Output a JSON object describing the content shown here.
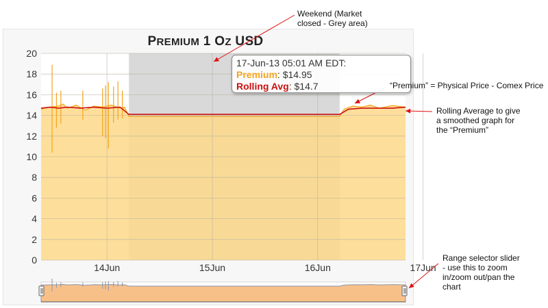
{
  "chart_data": {
    "type": "line",
    "title": "Premium 1 Oz USD",
    "ylim": [
      0,
      20
    ],
    "yticks": [
      0,
      2,
      4,
      6,
      8,
      10,
      12,
      14,
      16,
      18,
      20
    ],
    "x_axis": {
      "start": "2013-06-13 21:00",
      "end": "2013-06-17 08:00",
      "tick_labels": [
        "14Jun",
        "15Jun",
        "16Jun",
        "17Jun"
      ],
      "tick_times": [
        "2013-06-14 12:00",
        "2013-06-15 12:00",
        "2013-06-16 12:00",
        "2013-06-17 12:00"
      ]
    },
    "weekend_band": {
      "start": "2013-06-14 17:00",
      "end": "2013-06-16 17:00"
    },
    "grid": true,
    "series": [
      {
        "name": "Premium",
        "color": "#f5a31a",
        "style": "area",
        "points": [
          [
            "2013-06-13 21:00",
            14.6
          ],
          [
            "2013-06-13 23:00",
            14.8
          ],
          [
            "2013-06-14 01:00",
            14.9
          ],
          [
            "2013-06-14 02:00",
            15.1
          ],
          [
            "2013-06-14 03:00",
            14.7
          ],
          [
            "2013-06-14 05:00",
            15.0
          ],
          [
            "2013-06-14 07:00",
            14.5
          ],
          [
            "2013-06-14 09:00",
            14.9
          ],
          [
            "2013-06-14 11:00",
            14.8
          ],
          [
            "2013-06-14 13:00",
            15.0
          ],
          [
            "2013-06-14 15:00",
            14.7
          ],
          [
            "2013-06-14 16:00",
            14.8
          ],
          [
            "2013-06-14 17:00",
            13.9
          ],
          [
            "2013-06-16 17:00",
            13.9
          ],
          [
            "2013-06-16 18:00",
            14.6
          ],
          [
            "2013-06-16 20:00",
            14.9
          ],
          [
            "2013-06-16 22:00",
            14.8
          ],
          [
            "2013-06-17 00:00",
            15.0
          ],
          [
            "2013-06-17 02:00",
            14.7
          ],
          [
            "2013-06-17 05:00",
            14.95
          ],
          [
            "2013-06-17 08:00",
            14.8
          ]
        ],
        "spikes": [
          [
            "2013-06-13 23:30",
            10.4,
            18.9
          ],
          [
            "2013-06-14 00:30",
            12.8,
            16.2
          ],
          [
            "2013-06-14 01:30",
            13.2,
            16.4
          ],
          [
            "2013-06-14 06:30",
            13.6,
            16.4
          ],
          [
            "2013-06-14 11:00",
            12.0,
            16.6
          ],
          [
            "2013-06-14 11:40",
            11.8,
            16.9
          ],
          [
            "2013-06-14 12:20",
            10.8,
            17.2
          ],
          [
            "2013-06-14 13:30",
            13.3,
            16.8
          ],
          [
            "2013-06-14 14:30",
            13.6,
            17.3
          ],
          [
            "2013-06-14 15:30",
            13.7,
            16.4
          ]
        ]
      },
      {
        "name": "Rolling Avg",
        "color": "#cc1010",
        "style": "line",
        "points": [
          [
            "2013-06-13 21:00",
            14.7
          ],
          [
            "2013-06-13 23:00",
            14.8
          ],
          [
            "2013-06-14 01:00",
            14.7
          ],
          [
            "2013-06-14 03:00",
            14.8
          ],
          [
            "2013-06-14 06:00",
            14.7
          ],
          [
            "2013-06-14 09:00",
            14.8
          ],
          [
            "2013-06-14 12:00",
            14.7
          ],
          [
            "2013-06-14 15:00",
            14.8
          ],
          [
            "2013-06-14 17:00",
            14.1
          ],
          [
            "2013-06-16 17:00",
            14.1
          ],
          [
            "2013-06-16 19:00",
            14.6
          ],
          [
            "2013-06-16 22:00",
            14.7
          ],
          [
            "2013-06-17 02:00",
            14.7
          ],
          [
            "2013-06-17 05:00",
            14.7
          ],
          [
            "2013-06-17 08:00",
            14.8
          ]
        ]
      }
    ],
    "navigator": {
      "type": "area",
      "series": "Premium"
    }
  },
  "tooltip": {
    "timestamp": "17-Jun-13 05:01 AM EDT:",
    "premium_label": "Premium",
    "premium_value": "$14.95",
    "rolling_label": "Rolling Avg",
    "rolling_value": "$14.7"
  },
  "annotations": {
    "weekend": [
      "Weekend (Market",
      "closed - Grey area)"
    ],
    "premium": "“Premium” = Physical Price - Comex Price",
    "rolling": [
      "Rolling Average to give",
      "a smoothed graph for",
      "the “Premium”"
    ],
    "range": [
      "Range selector slider",
      "- use this to zoom",
      "in/zoom out/pan the",
      "chart"
    ]
  },
  "colors": {
    "premium_area": "#fdd98a",
    "weekend_band": "#d9d9d9",
    "arrow": "#e01010",
    "navigator_line": "#8894ac"
  }
}
